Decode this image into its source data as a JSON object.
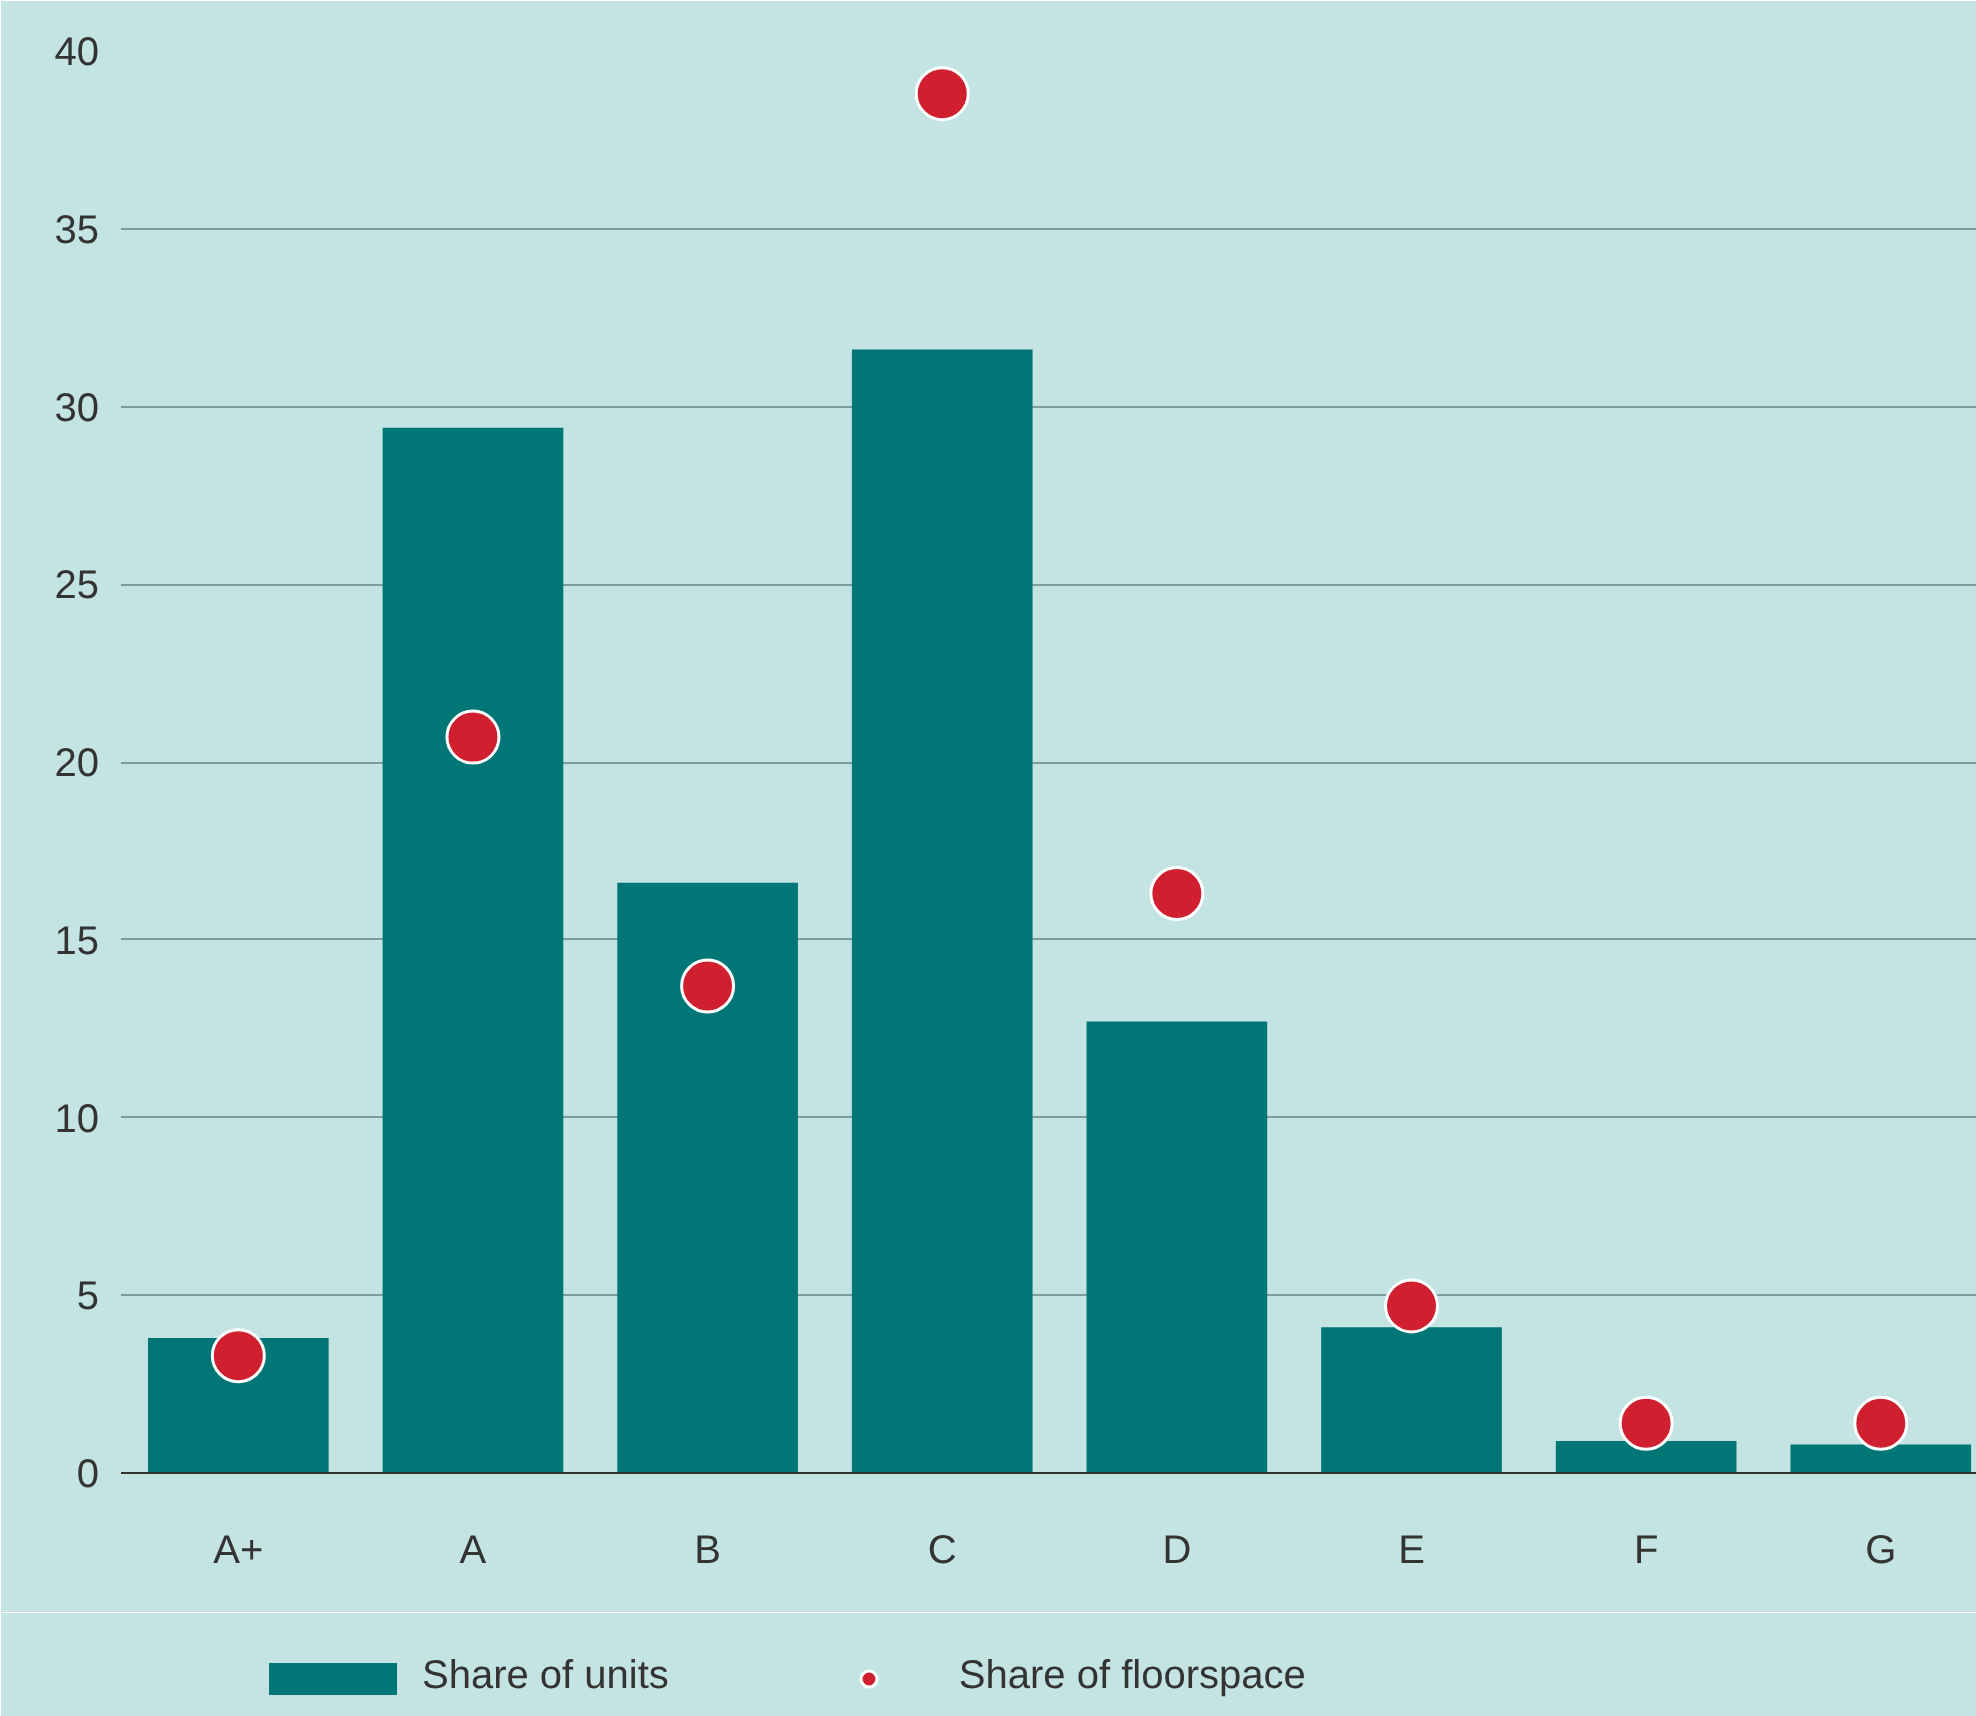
{
  "chart_data": {
    "type": "bar",
    "categories": [
      "A+",
      "A",
      "B",
      "C",
      "D",
      "E",
      "F",
      "G"
    ],
    "series": [
      {
        "name": "Share of units",
        "color": "#007677",
        "values": [
          3.8,
          29.4,
          16.6,
          31.6,
          12.7,
          4.1,
          0.9,
          0.8
        ]
      },
      {
        "name": "Share of floorspace",
        "type": "scatter",
        "color": "#d0202f",
        "marker": "circle",
        "values": [
          3.3,
          20.7,
          13.7,
          38.8,
          16.3,
          4.7,
          1.4,
          1.4
        ]
      }
    ],
    "ylim": [
      0,
      40
    ],
    "yticks": [
      0,
      5,
      10,
      15,
      20,
      25,
      30,
      35,
      40
    ],
    "grid": "y",
    "legend": "bottom"
  }
}
